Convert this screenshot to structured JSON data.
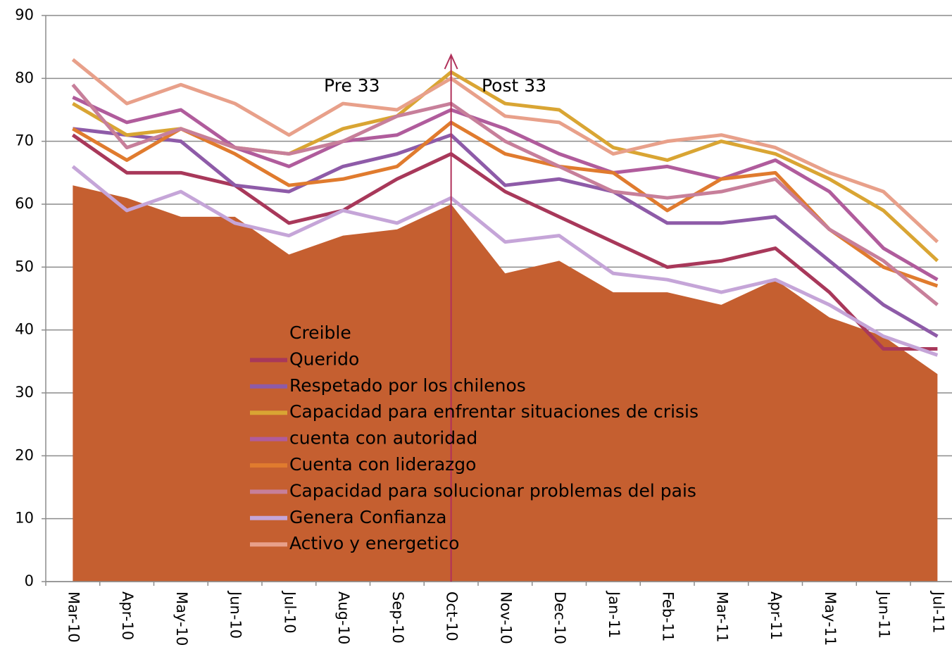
{
  "chart_data": {
    "type": "line",
    "categories": [
      "Mar-10",
      "Apr-10",
      "May-10",
      "Jun-10",
      "Jul-10",
      "Aug-10",
      "Sep-10",
      "Oct-10",
      "Nov-10",
      "Dec-10",
      "Jan-11",
      "Feb-11",
      "Mar-11",
      "Apr-11",
      "May-11",
      "Jun-11",
      "Jul-11"
    ],
    "series": [
      {
        "name": "Creible",
        "type": "area",
        "color": "#c55f30",
        "values": [
          63,
          61,
          58,
          58,
          52,
          55,
          56,
          60,
          49,
          51,
          46,
          46,
          44,
          48,
          42,
          39,
          33
        ]
      },
      {
        "name": "Querido",
        "color": "#a8385a",
        "values": [
          71,
          65,
          65,
          63,
          57,
          59,
          64,
          68,
          62,
          58,
          54,
          50,
          51,
          53,
          46,
          37,
          37
        ]
      },
      {
        "name": "Respetado por los chilenos",
        "color": "#8e5ba8",
        "values": [
          72,
          71,
          70,
          63,
          62,
          66,
          68,
          71,
          63,
          64,
          62,
          57,
          57,
          58,
          51,
          44,
          39
        ]
      },
      {
        "name": "Capacidad para enfrentar situaciones de crisis",
        "color": "#d9a533",
        "values": [
          76,
          71,
          72,
          69,
          68,
          72,
          74,
          81,
          76,
          75,
          69,
          67,
          70,
          68,
          64,
          59,
          51
        ]
      },
      {
        "name": "cuenta con autoridad",
        "color": "#b05c9c",
        "values": [
          77,
          73,
          75,
          69,
          66,
          70,
          71,
          75,
          72,
          68,
          65,
          66,
          64,
          67,
          62,
          53,
          48
        ]
      },
      {
        "name": "Cuenta con liderazgo",
        "color": "#e07b2e",
        "values": [
          72,
          67,
          72,
          68,
          63,
          64,
          66,
          73,
          68,
          66,
          65,
          59,
          64,
          65,
          56,
          50,
          47
        ]
      },
      {
        "name": "Capacidad para solucionar problemas del pais",
        "color": "#c77f9a",
        "values": [
          79,
          69,
          72,
          69,
          68,
          70,
          74,
          76,
          70,
          66,
          62,
          61,
          62,
          64,
          56,
          51,
          44
        ]
      },
      {
        "name": "Genera Confianza",
        "color": "#c5a5d8",
        "values": [
          66,
          59,
          62,
          57,
          55,
          59,
          57,
          61,
          54,
          55,
          49,
          48,
          46,
          48,
          44,
          39,
          36
        ]
      },
      {
        "name": "Activo y energetico",
        "color": "#e8a08a",
        "values": [
          83,
          76,
          79,
          76,
          71,
          76,
          75,
          80,
          74,
          73,
          68,
          70,
          71,
          69,
          65,
          62,
          54
        ]
      }
    ],
    "annotations": [
      "Pre 33",
      "Post 33"
    ],
    "ylim": [
      0,
      90
    ],
    "yticks": [
      0,
      10,
      20,
      30,
      40,
      50,
      60,
      70,
      80,
      90
    ],
    "grid": true
  }
}
